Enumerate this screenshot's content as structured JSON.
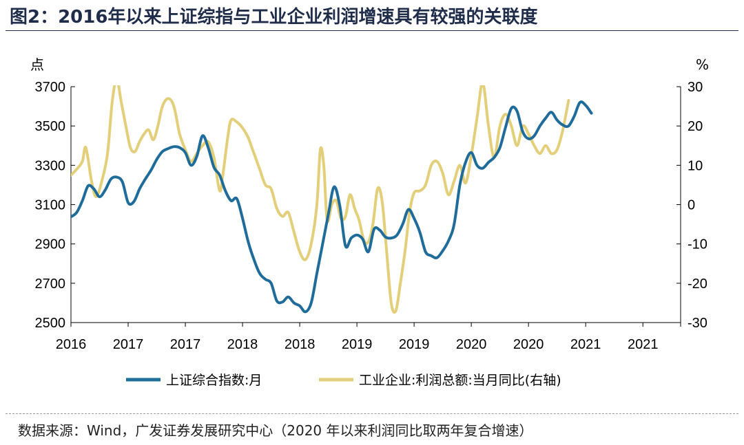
{
  "figure": {
    "title": "图2：2016年以来上证综指与工业企业利润增速具有较强的关联度",
    "source": "数据来源：Wind，广发证券发展研究中心（2020 年以来利润同比取两年复合增速）"
  },
  "colors": {
    "index_line": "#1f6c9b",
    "profit_line": "#e3cf7a",
    "axis": "#000000"
  },
  "chart_data": {
    "type": "line",
    "title": "2016年以来上证综指与工业企业利润增速具有较强的关联度",
    "y_left": {
      "unit": "点",
      "range": [
        2500,
        3700
      ],
      "ticks": [
        "2500",
        "2700",
        "2900",
        "3100",
        "3300",
        "3500",
        "3700"
      ]
    },
    "y_right": {
      "unit": "%",
      "range": [
        -30,
        30
      ],
      "ticks": [
        "-30",
        "-20",
        "-10",
        "0",
        "10",
        "20",
        "30"
      ]
    },
    "x_range": [
      2016.0,
      2021.33
    ],
    "x_ticks": [
      {
        "pos": 2016.0,
        "label": "2016"
      },
      {
        "pos": 2016.5,
        "label": "2017"
      },
      {
        "pos": 2017.0,
        "label": "2017"
      },
      {
        "pos": 2017.5,
        "label": "2018"
      },
      {
        "pos": 2018.0,
        "label": "2018"
      },
      {
        "pos": 2018.5,
        "label": "2019"
      },
      {
        "pos": 2019.0,
        "label": "2019"
      },
      {
        "pos": 2019.5,
        "label": "2020"
      },
      {
        "pos": 2020.0,
        "label": "2020"
      },
      {
        "pos": 2020.5,
        "label": "2021"
      },
      {
        "pos": 2021.0,
        "label": "2021"
      }
    ],
    "series": [
      {
        "name": "上证综合指数:月",
        "axis": "left",
        "points": [
          [
            2016.0,
            3038
          ],
          [
            2016.05,
            3060
          ],
          [
            2016.1,
            3120
          ],
          [
            2016.15,
            3195
          ],
          [
            2016.2,
            3180
          ],
          [
            2016.25,
            3140
          ],
          [
            2016.3,
            3175
          ],
          [
            2016.35,
            3230
          ],
          [
            2016.4,
            3240
          ],
          [
            2016.45,
            3215
          ],
          [
            2016.5,
            3110
          ],
          [
            2016.55,
            3115
          ],
          [
            2016.6,
            3180
          ],
          [
            2016.65,
            3230
          ],
          [
            2016.7,
            3275
          ],
          [
            2016.75,
            3330
          ],
          [
            2016.8,
            3370
          ],
          [
            2016.85,
            3385
          ],
          [
            2016.9,
            3395
          ],
          [
            2016.95,
            3390
          ],
          [
            2017.0,
            3365
          ],
          [
            2017.05,
            3300
          ],
          [
            2017.1,
            3345
          ],
          [
            2017.15,
            3450
          ],
          [
            2017.2,
            3390
          ],
          [
            2017.25,
            3290
          ],
          [
            2017.3,
            3250
          ],
          [
            2017.35,
            3170
          ],
          [
            2017.4,
            3120
          ],
          [
            2017.45,
            3130
          ],
          [
            2017.5,
            3030
          ],
          [
            2017.55,
            2910
          ],
          [
            2017.6,
            2820
          ],
          [
            2017.65,
            2750
          ],
          [
            2017.7,
            2720
          ],
          [
            2017.75,
            2700
          ],
          [
            2017.8,
            2610
          ],
          [
            2017.85,
            2605
          ],
          [
            2017.9,
            2630
          ],
          [
            2017.95,
            2600
          ],
          [
            2018.0,
            2585
          ],
          [
            2018.05,
            2555
          ],
          [
            2018.1,
            2600
          ],
          [
            2018.15,
            2750
          ],
          [
            2018.2,
            2900
          ],
          [
            2018.25,
            3050
          ],
          [
            2018.3,
            3190
          ],
          [
            2018.35,
            3095
          ],
          [
            2018.4,
            2890
          ],
          [
            2018.45,
            2930
          ],
          [
            2018.5,
            2945
          ],
          [
            2018.55,
            2925
          ],
          [
            2018.6,
            2860
          ],
          [
            2018.65,
            2975
          ],
          [
            2018.7,
            2970
          ],
          [
            2018.75,
            2935
          ],
          [
            2018.8,
            2930
          ],
          [
            2018.85,
            2945
          ],
          [
            2018.9,
            3000
          ],
          [
            2018.95,
            3075
          ],
          [
            2019.0,
            3030
          ],
          [
            2019.05,
            2960
          ],
          [
            2019.1,
            2860
          ],
          [
            2019.15,
            2840
          ],
          [
            2019.2,
            2830
          ],
          [
            2019.25,
            2865
          ],
          [
            2019.3,
            2915
          ],
          [
            2019.35,
            3000
          ],
          [
            2019.4,
            3200
          ],
          [
            2019.45,
            3315
          ],
          [
            2019.5,
            3365
          ],
          [
            2019.55,
            3300
          ],
          [
            2019.6,
            3285
          ],
          [
            2019.65,
            3315
          ],
          [
            2019.7,
            3340
          ],
          [
            2019.75,
            3390
          ],
          [
            2019.8,
            3495
          ],
          [
            2019.85,
            3590
          ],
          [
            2019.9,
            3575
          ],
          [
            2019.95,
            3470
          ],
          [
            2020.0,
            3435
          ],
          [
            2020.05,
            3450
          ],
          [
            2020.1,
            3500
          ],
          [
            2020.15,
            3540
          ],
          [
            2020.2,
            3570
          ],
          [
            2020.25,
            3530
          ],
          [
            2020.3,
            3505
          ],
          [
            2020.35,
            3500
          ],
          [
            2020.4,
            3550
          ],
          [
            2020.45,
            3620
          ],
          [
            2020.5,
            3605
          ],
          [
            2020.55,
            3565
          ]
        ]
      },
      {
        "name": "工业企业:利润总额:当月同比(右轴)",
        "axis": "right",
        "points": [
          [
            2016.0,
            7.5
          ],
          [
            2016.05,
            9
          ],
          [
            2016.1,
            11
          ],
          [
            2016.13,
            14.5
          ],
          [
            2016.18,
            6
          ],
          [
            2016.22,
            2
          ],
          [
            2016.27,
            6
          ],
          [
            2016.32,
            13
          ],
          [
            2016.36,
            26
          ],
          [
            2016.4,
            32
          ],
          [
            2016.44,
            26
          ],
          [
            2016.48,
            20
          ],
          [
            2016.52,
            14.5
          ],
          [
            2016.56,
            13.5
          ],
          [
            2016.6,
            16
          ],
          [
            2016.64,
            18
          ],
          [
            2016.68,
            19
          ],
          [
            2016.72,
            16.5
          ],
          [
            2016.76,
            20
          ],
          [
            2016.8,
            25
          ],
          [
            2016.85,
            27
          ],
          [
            2016.9,
            25
          ],
          [
            2016.95,
            18
          ],
          [
            2017.0,
            14
          ],
          [
            2017.05,
            11
          ],
          [
            2017.1,
            13
          ],
          [
            2017.15,
            15
          ],
          [
            2017.2,
            16
          ],
          [
            2017.25,
            12
          ],
          [
            2017.3,
            3.5
          ],
          [
            2017.33,
            8
          ],
          [
            2017.37,
            17
          ],
          [
            2017.4,
            21.5
          ],
          [
            2017.45,
            21
          ],
          [
            2017.5,
            19.5
          ],
          [
            2017.55,
            17
          ],
          [
            2017.6,
            13
          ],
          [
            2017.65,
            9
          ],
          [
            2017.7,
            5
          ],
          [
            2017.75,
            4
          ],
          [
            2017.8,
            -1
          ],
          [
            2017.85,
            -3
          ],
          [
            2017.9,
            -2
          ],
          [
            2017.95,
            -7
          ],
          [
            2018.0,
            -12
          ],
          [
            2018.05,
            -14
          ],
          [
            2018.1,
            -10
          ],
          [
            2018.15,
            0
          ],
          [
            2018.18,
            14
          ],
          [
            2018.21,
            10
          ],
          [
            2018.24,
            -4
          ],
          [
            2018.28,
            0
          ],
          [
            2018.32,
            1
          ],
          [
            2018.36,
            -3.5
          ],
          [
            2018.4,
            -3
          ],
          [
            2018.44,
            2.5
          ],
          [
            2018.48,
            -1
          ],
          [
            2018.52,
            -4
          ],
          [
            2018.56,
            -9
          ],
          [
            2018.6,
            -9.5
          ],
          [
            2018.64,
            -5
          ],
          [
            2018.68,
            4
          ],
          [
            2018.72,
            1
          ],
          [
            2018.76,
            -12
          ],
          [
            2018.8,
            -25
          ],
          [
            2018.84,
            -27
          ],
          [
            2018.88,
            -20
          ],
          [
            2018.92,
            -12
          ],
          [
            2018.96,
            -2
          ],
          [
            2019.0,
            3
          ],
          [
            2019.05,
            3.5
          ],
          [
            2019.1,
            5
          ],
          [
            2019.15,
            10
          ],
          [
            2019.2,
            11
          ],
          [
            2019.25,
            8
          ],
          [
            2019.3,
            2.5
          ],
          [
            2019.35,
            6
          ],
          [
            2019.4,
            10
          ],
          [
            2019.45,
            5.5
          ],
          [
            2019.5,
            12.5
          ],
          [
            2019.55,
            22
          ],
          [
            2019.6,
            31
          ],
          [
            2019.65,
            20
          ],
          [
            2019.7,
            12
          ],
          [
            2019.75,
            20
          ],
          [
            2019.8,
            23
          ],
          [
            2019.85,
            20
          ],
          [
            2019.9,
            15
          ],
          [
            2019.95,
            20
          ],
          [
            2020.0,
            18
          ],
          [
            2020.05,
            15
          ],
          [
            2020.1,
            13
          ],
          [
            2020.15,
            15
          ],
          [
            2020.2,
            13
          ],
          [
            2020.25,
            14
          ],
          [
            2020.3,
            19
          ],
          [
            2020.35,
            26.5
          ]
        ]
      }
    ]
  },
  "legend": {
    "index_label": "上证综合指数:月",
    "profit_label": "工业企业:利润总额:当月同比(右轴)"
  }
}
